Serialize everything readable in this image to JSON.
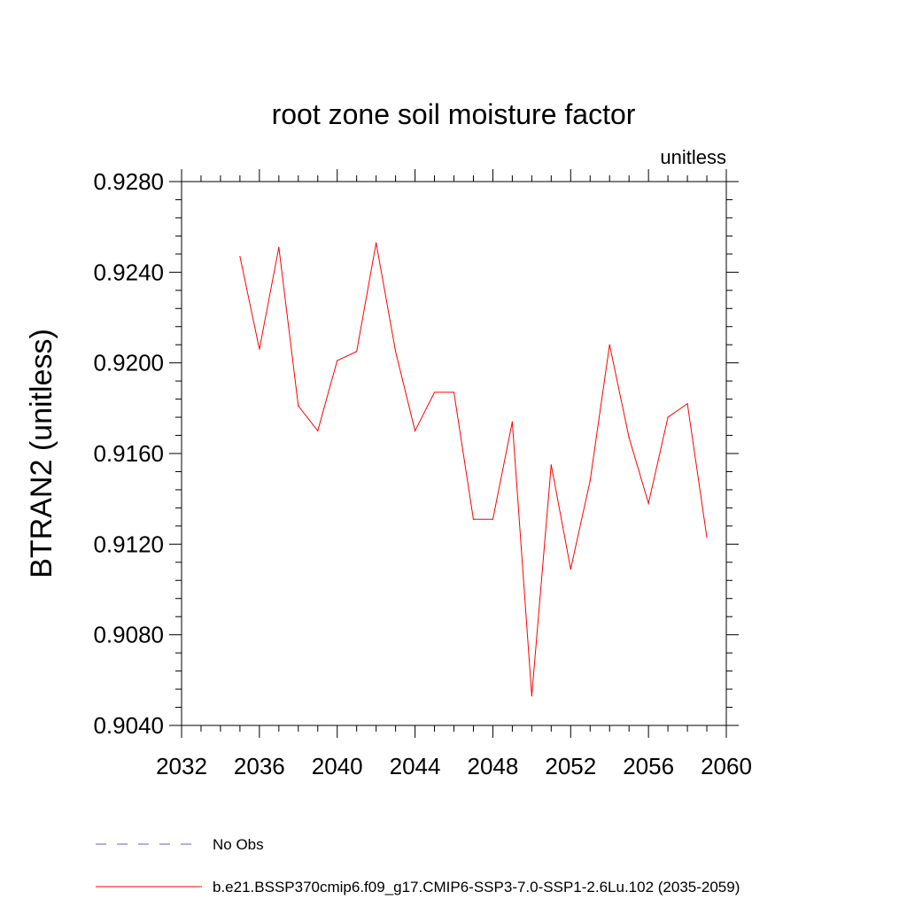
{
  "chart_data": {
    "type": "line",
    "title": "root zone soil moisture factor",
    "units_label": "unitless",
    "ylabel": "BTRAN2  (unitless)",
    "xlabel": "",
    "xlim": [
      2032,
      2060
    ],
    "ylim": [
      0.904,
      0.928
    ],
    "xticks": [
      "2032",
      "2036",
      "2040",
      "2044",
      "2048",
      "2052",
      "2056",
      "2060"
    ],
    "yticks": [
      "0.9280",
      "0.9240",
      "0.9200",
      "0.9160",
      "0.9120",
      "0.9080",
      "0.9040"
    ],
    "series": [
      {
        "name": "b.e21.BSSP370cmip6.f09_g17.CMIP6-SSP3-7.0-SSP1-2.6Lu.102 (2035-2059)",
        "color": "#ff0000",
        "x": [
          2035,
          2036,
          2037,
          2038,
          2039,
          2040,
          2041,
          2042,
          2043,
          2044,
          2045,
          2046,
          2047,
          2048,
          2049,
          2050,
          2051,
          2052,
          2053,
          2054,
          2055,
          2056,
          2057,
          2058,
          2059
        ],
        "y": [
          0.9247,
          0.9206,
          0.9251,
          0.9181,
          0.917,
          0.9201,
          0.9205,
          0.9253,
          0.9205,
          0.917,
          0.9187,
          0.9187,
          0.9131,
          0.9131,
          0.9174,
          0.9053,
          0.9155,
          0.9109,
          0.9148,
          0.9208,
          0.9167,
          0.9138,
          0.9176,
          0.9182,
          0.9123
        ]
      }
    ],
    "legend": [
      {
        "label": "No Obs",
        "style": "dashed",
        "color": "#6a5acd"
      },
      {
        "label": "b.e21.BSSP370cmip6.f09_g17.CMIP6-SSP3-7.0-SSP1-2.6Lu.102 (2035-2059)",
        "style": "solid",
        "color": "#ff0000"
      }
    ],
    "legend_position": "bottom",
    "grid": false
  }
}
